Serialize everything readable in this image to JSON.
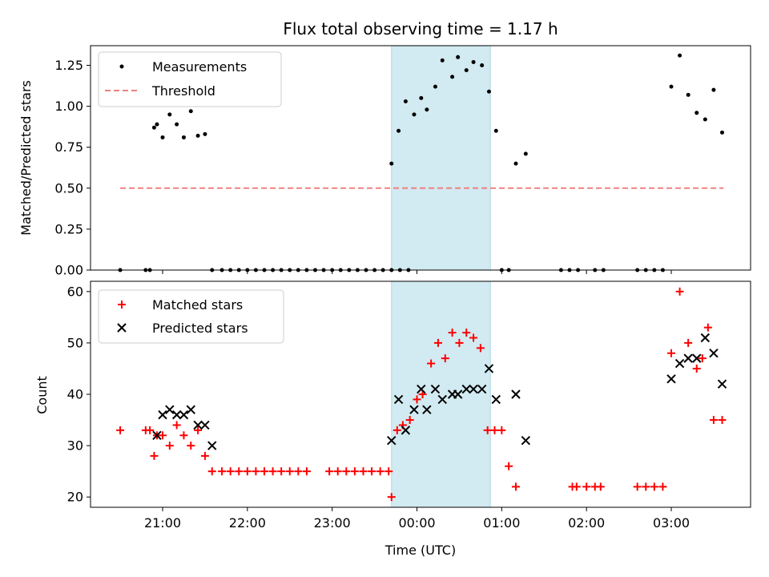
{
  "title": "Flux total observing time = 1.17 h",
  "chart_data": [
    {
      "type": "scatter",
      "panel": "top",
      "ylabel": "Matched/Predicted stars",
      "ylim": [
        0,
        1.37
      ],
      "yticks": [
        0.0,
        0.25,
        0.5,
        0.75,
        1.0,
        1.25
      ],
      "ytick_labels": [
        "0.00",
        "0.25",
        "0.50",
        "0.75",
        "1.00",
        "1.25"
      ],
      "legend": {
        "placement": "top-left",
        "entries": [
          "Measurements",
          "Threshold"
        ]
      },
      "series": [
        {
          "name": "Measurements",
          "marker": "dot",
          "color": "#000000",
          "x": [
            "20:30",
            "20:48",
            "20:51",
            "20:54",
            "20:56",
            "21:00",
            "21:05",
            "21:10",
            "21:15",
            "21:20",
            "21:25",
            "21:30",
            "21:35",
            "21:42",
            "21:48",
            "21:54",
            "22:00",
            "22:06",
            "22:12",
            "22:18",
            "22:24",
            "22:30",
            "22:36",
            "22:42",
            "22:48",
            "22:54",
            "23:00",
            "23:06",
            "23:12",
            "23:18",
            "23:24",
            "23:30",
            "23:36",
            "23:42",
            "23:48",
            "23:54",
            "23:42",
            "23:47",
            "23:52",
            "23:58",
            "24:03",
            "24:07",
            "24:13",
            "24:18",
            "24:25",
            "24:29",
            "24:35",
            "24:40",
            "24:46",
            "24:51",
            "24:56",
            "25:00",
            "25:05",
            "25:10",
            "25:17",
            "25:42",
            "25:48",
            "25:54",
            "26:06",
            "26:12",
            "26:36",
            "26:42",
            "26:48",
            "26:54",
            "27:00",
            "27:06",
            "27:12",
            "27:18",
            "27:24",
            "27:30",
            "27:36"
          ],
          "y": [
            0.0,
            0.0,
            0.0,
            0.87,
            0.89,
            0.81,
            0.95,
            0.89,
            0.81,
            0.97,
            0.82,
            0.83,
            0.0,
            0.0,
            0.0,
            0.0,
            0.0,
            0.0,
            0.0,
            0.0,
            0.0,
            0.0,
            0.0,
            0.0,
            0.0,
            0.0,
            0.0,
            0.0,
            0.0,
            0.0,
            0.0,
            0.0,
            0.0,
            0.0,
            0.0,
            0.0,
            0.65,
            0.85,
            1.03,
            0.95,
            1.05,
            0.98,
            1.12,
            1.28,
            1.18,
            1.3,
            1.22,
            1.27,
            1.25,
            1.09,
            0.85,
            0.0,
            0.0,
            0.65,
            0.71,
            0.0,
            0.0,
            0.0,
            0.0,
            0.0,
            0.0,
            0.0,
            0.0,
            0.0,
            1.12,
            1.31,
            1.07,
            0.96,
            0.92,
            1.1,
            0.84
          ],
          "note": "x values are hour:minute times; hours above 23 denote times after midnight (24:03 = 00:03)"
        },
        {
          "name": "Threshold",
          "style": "dashed",
          "color": "#f08080",
          "x": [
            "20:30",
            "27:37"
          ],
          "y": [
            0.5,
            0.5
          ]
        }
      ],
      "shaded_region": {
        "x": [
          "23:42",
          "24:52"
        ],
        "color": "#add8e6"
      }
    },
    {
      "type": "scatter",
      "panel": "bottom",
      "xlabel": "Time (UTC)",
      "ylabel": "Count",
      "ylim": [
        18,
        62
      ],
      "yticks": [
        20,
        30,
        40,
        50,
        60
      ],
      "xticks": [
        "21:00",
        "22:00",
        "23:00",
        "00:00",
        "01:00",
        "02:00",
        "03:00"
      ],
      "legend": {
        "placement": "top-left",
        "entries": [
          "Matched stars",
          "Predicted stars"
        ]
      },
      "series": [
        {
          "name": "Matched stars",
          "marker": "plus",
          "color": "#ff0000",
          "points": [
            [
              "20:30",
              33
            ],
            [
              "20:48",
              33
            ],
            [
              "20:51",
              33
            ],
            [
              "20:54",
              28
            ],
            [
              "20:56",
              32
            ],
            [
              "21:00",
              32
            ],
            [
              "21:05",
              30
            ],
            [
              "21:10",
              34
            ],
            [
              "21:15",
              32
            ],
            [
              "21:20",
              30
            ],
            [
              "21:25",
              33
            ],
            [
              "21:30",
              28
            ],
            [
              "21:35",
              25
            ],
            [
              "21:42",
              25
            ],
            [
              "21:48",
              25
            ],
            [
              "21:54",
              25
            ],
            [
              "22:00",
              25
            ],
            [
              "22:06",
              25
            ],
            [
              "22:12",
              25
            ],
            [
              "22:18",
              25
            ],
            [
              "22:24",
              25
            ],
            [
              "22:30",
              25
            ],
            [
              "22:36",
              25
            ],
            [
              "22:42",
              25
            ],
            [
              "22:58",
              25
            ],
            [
              "23:04",
              25
            ],
            [
              "23:10",
              25
            ],
            [
              "23:16",
              25
            ],
            [
              "23:22",
              25
            ],
            [
              "23:28",
              25
            ],
            [
              "23:34",
              25
            ],
            [
              "23:40",
              25
            ],
            [
              "23:42",
              20
            ],
            [
              "23:46",
              33
            ],
            [
              "23:50",
              34
            ],
            [
              "23:55",
              35
            ],
            [
              "24:00",
              39
            ],
            [
              "24:04",
              40
            ],
            [
              "24:10",
              46
            ],
            [
              "24:15",
              50
            ],
            [
              "24:20",
              47
            ],
            [
              "24:25",
              52
            ],
            [
              "24:30",
              50
            ],
            [
              "24:35",
              52
            ],
            [
              "24:40",
              51
            ],
            [
              "24:45",
              49
            ],
            [
              "24:50",
              33
            ],
            [
              "24:55",
              33
            ],
            [
              "25:00",
              33
            ],
            [
              "25:05",
              26
            ],
            [
              "25:10",
              22
            ],
            [
              "25:50",
              22
            ],
            [
              "25:53",
              22
            ],
            [
              "26:00",
              22
            ],
            [
              "26:06",
              22
            ],
            [
              "26:10",
              22
            ],
            [
              "26:36",
              22
            ],
            [
              "26:42",
              22
            ],
            [
              "26:48",
              22
            ],
            [
              "26:54",
              22
            ],
            [
              "27:00",
              48
            ],
            [
              "27:06",
              60
            ],
            [
              "27:12",
              50
            ],
            [
              "27:18",
              45
            ],
            [
              "27:22",
              47
            ],
            [
              "27:26",
              53
            ],
            [
              "27:30",
              35
            ],
            [
              "27:36",
              35
            ]
          ]
        },
        {
          "name": "Predicted stars",
          "marker": "x",
          "color": "#000000",
          "points": [
            [
              "20:56",
              32
            ],
            [
              "21:00",
              36
            ],
            [
              "21:05",
              37
            ],
            [
              "21:10",
              36
            ],
            [
              "21:15",
              36
            ],
            [
              "21:20",
              37
            ],
            [
              "21:25",
              34
            ],
            [
              "21:30",
              34
            ],
            [
              "21:35",
              30
            ],
            [
              "23:42",
              31
            ],
            [
              "23:47",
              39
            ],
            [
              "23:52",
              33
            ],
            [
              "23:58",
              37
            ],
            [
              "24:03",
              41
            ],
            [
              "24:07",
              37
            ],
            [
              "24:13",
              41
            ],
            [
              "24:18",
              39
            ],
            [
              "24:25",
              40
            ],
            [
              "24:29",
              40
            ],
            [
              "24:35",
              41
            ],
            [
              "24:40",
              41
            ],
            [
              "24:46",
              41
            ],
            [
              "24:51",
              45
            ],
            [
              "24:56",
              39
            ],
            [
              "25:10",
              40
            ],
            [
              "25:17",
              31
            ],
            [
              "27:00",
              43
            ],
            [
              "27:06",
              46
            ],
            [
              "27:12",
              47
            ],
            [
              "27:18",
              47
            ],
            [
              "27:24",
              51
            ],
            [
              "27:30",
              48
            ],
            [
              "27:36",
              42
            ]
          ]
        }
      ],
      "shaded_region": {
        "x": [
          "23:42",
          "24:52"
        ],
        "color": "#add8e6"
      }
    }
  ]
}
